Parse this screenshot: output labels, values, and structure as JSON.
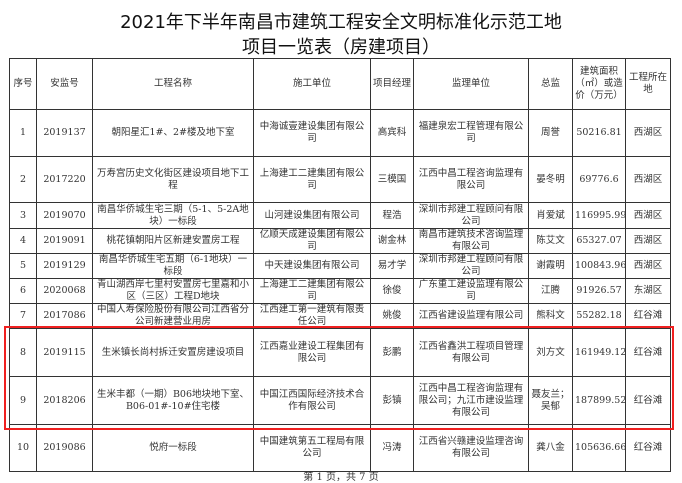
{
  "title": {
    "line1": "2021年下半年南昌市建筑工程安全文明标准化示范工地",
    "line2": "项目一览表（房建项目）"
  },
  "headers": [
    "序号",
    "安监号",
    "工程名称",
    "施工单位",
    "项目经理",
    "监理单位",
    "总监",
    "建筑面积（㎡）或造价（万元）",
    "工程所在地"
  ],
  "rows": [
    [
      "1",
      "2019137",
      "朝阳星汇1#、2#楼及地下室",
      "中海诚壹建设集团有限公司",
      "高宾科",
      "福建泉宏工程管理有限公司",
      "周誉",
      "50216.81",
      "西湖区"
    ],
    [
      "2",
      "2017220",
      "万寿宫历史文化街区建设项目地下工程",
      "上海建工二建集团有限公司",
      "三模国",
      "江西中昌工程咨询监理有限公司",
      "晏冬明",
      "69776.6",
      "西湖区"
    ],
    [
      "3",
      "2019070",
      "南昌华侨城生宅三期（5-1、5-2A地块）一标段",
      "山河建设集团有限公司",
      "程浩",
      "深圳市邦建工程顾问有限公司",
      "肖爱斌",
      "116995.99",
      "西湖区"
    ],
    [
      "4",
      "2019091",
      "桃花镇朝阳片区新建安置房工程",
      "亿顺天成建设集团有限公司",
      "谢金林",
      "南昌市建筑技术咨询监理有限公司",
      "陈艾文",
      "65327.07",
      "西湖区"
    ],
    [
      "5",
      "2019129",
      "南昌华侨城生宅五期（6-1地块）一标段",
      "中天建设集团有限公司",
      "易才学",
      "深圳市邦建工程顾问有限公司",
      "谢霞明",
      "100843.96",
      "西湖区"
    ],
    [
      "6",
      "2020068",
      "青山湖西岸七里村安置房七里嘉和小区（三区）工程D地块",
      "上海建工二建集团有限公司",
      "徐俊",
      "广东重工建设监理有限公司",
      "江腾",
      "91926.57",
      "东湖区"
    ],
    [
      "7",
      "2017086",
      "中国人寿保险股份有限公司江西省分公司新建营业用房",
      "江西建工第一建筑有限责任公司",
      "姚俊",
      "江西省建设监理有限公司",
      "熊科文",
      "55282.18",
      "红谷滩"
    ],
    [
      "8",
      "2019115",
      "生米镇长尚村拆迁安置房建设项目",
      "江西嘉业建设工程集团有限公司",
      "彭鹏",
      "江西省鑫洪工程项目管理有限公司",
      "刘方文",
      "161949.12",
      "红谷滩"
    ],
    [
      "9",
      "2018206",
      "生米丰都（一期）B06地块地下室、B06-01#-10#住宅楼",
      "中国江西国际经济技术合作有限公司",
      "彭镇",
      "江西中昌工程咨询监理有限公司；九江市建设监理有限公司",
      "聂友兰；吴郁",
      "187899.52",
      "红谷滩"
    ],
    [
      "10",
      "2019086",
      "悦府一标段",
      "中国建筑第五工程局有限公司",
      "冯涛",
      "江西省兴赣建设监理咨询有限公司",
      "龚八金",
      "105636.66",
      "红谷滩"
    ]
  ],
  "footer": "第 1 页，共 7 页",
  "highlight_color": "#f02020"
}
